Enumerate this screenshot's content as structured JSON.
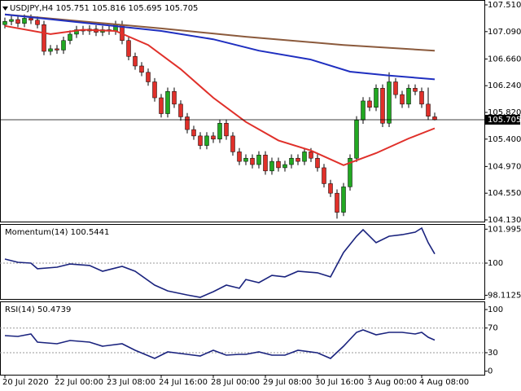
{
  "chart_data": [
    {
      "type": "candlestick",
      "title": "USDJPY,H4  105.751 105.816 105.695 105.705",
      "xlim": [
        -0.75,
        73.625
      ],
      "xticks": [
        {
          "value": 0,
          "label": "20 Jul 2020"
        },
        {
          "value": 8,
          "label": "22 Jul 00:00"
        },
        {
          "value": 16,
          "label": "23 Jul 08:00"
        },
        {
          "value": 24,
          "label": "24 Jul 16:00"
        },
        {
          "value": 32,
          "label": "28 Jul 00:00"
        },
        {
          "value": 40,
          "label": "29 Jul 08:00"
        },
        {
          "value": 48,
          "label": "30 Jul 16:00"
        },
        {
          "value": 56,
          "label": "3 Aug 00:00"
        },
        {
          "value": 64,
          "label": "4 Aug 08:00"
        }
      ],
      "ylim": [
        104.104,
        107.587
      ],
      "yticks": [
        {
          "value": 107.51,
          "label": "107.510"
        },
        {
          "value": 107.09,
          "label": "107.090"
        },
        {
          "value": 106.66,
          "label": "106.660"
        },
        {
          "value": 106.24,
          "label": "106.240"
        },
        {
          "value": 105.82,
          "label": "105.820"
        },
        {
          "value": 105.4,
          "label": "105.400"
        },
        {
          "value": 104.97,
          "label": "104.970"
        },
        {
          "value": 104.55,
          "label": "104.550"
        },
        {
          "value": 104.13,
          "label": "104.130"
        }
      ],
      "price_line": 105.705,
      "up_color": "#22a822",
      "down_color": "#e0302a",
      "open": [
        107.2,
        107.25,
        107.28,
        107.22,
        107.3,
        107.27,
        107.2,
        106.78,
        106.82,
        106.8,
        106.95,
        107.05,
        107.12,
        107.1,
        107.13,
        107.08,
        107.12,
        107.1,
        107.2,
        106.95,
        106.7,
        106.55,
        106.45,
        106.3,
        106.05,
        105.8,
        106.15,
        105.95,
        105.75,
        105.55,
        105.45,
        105.3,
        105.45,
        105.4,
        105.65,
        105.45,
        105.2,
        105.05,
        105.1,
        105.0,
        105.15,
        104.9,
        105.05,
        104.95,
        105.0,
        105.1,
        105.05,
        105.2,
        105.1,
        104.95,
        104.7,
        104.55,
        104.25,
        104.65,
        105.1,
        105.7,
        106.0,
        105.9,
        106.2,
        105.65,
        106.3,
        106.1,
        105.95,
        106.2,
        106.15,
        105.95,
        105.751
      ],
      "high": [
        107.31,
        107.34,
        107.34,
        107.36,
        107.36,
        107.33,
        107.26,
        106.88,
        106.88,
        107.01,
        107.11,
        107.18,
        107.18,
        107.19,
        107.19,
        107.18,
        107.18,
        107.26,
        107.26,
        107.01,
        106.76,
        106.61,
        106.51,
        106.36,
        106.11,
        106.21,
        106.21,
        106.01,
        105.81,
        105.61,
        105.51,
        105.51,
        105.51,
        105.71,
        105.71,
        105.51,
        105.26,
        105.16,
        105.16,
        105.21,
        105.21,
        105.11,
        105.11,
        105.06,
        105.16,
        105.16,
        105.26,
        105.26,
        105.16,
        105.01,
        104.76,
        104.61,
        104.71,
        105.16,
        105.76,
        106.06,
        106.06,
        106.26,
        106.26,
        106.45,
        106.36,
        106.16,
        106.26,
        106.26,
        106.21,
        106.21,
        105.816
      ],
      "low": [
        107.14,
        107.19,
        107.16,
        107.16,
        107.21,
        107.14,
        106.72,
        106.72,
        106.74,
        106.74,
        106.89,
        106.99,
        107.04,
        107.04,
        107.02,
        107.02,
        107.04,
        107.04,
        106.89,
        106.64,
        106.49,
        106.39,
        106.24,
        105.99,
        105.74,
        105.74,
        105.89,
        105.69,
        105.49,
        105.39,
        105.24,
        105.24,
        105.34,
        105.34,
        105.39,
        105.14,
        104.99,
        104.99,
        104.94,
        104.94,
        104.84,
        104.84,
        104.89,
        104.89,
        104.94,
        104.99,
        104.99,
        105.04,
        104.89,
        104.64,
        104.49,
        104.15,
        104.19,
        104.59,
        105.04,
        105.64,
        105.84,
        105.84,
        105.59,
        105.59,
        106.04,
        105.89,
        105.89,
        106.09,
        105.89,
        105.7,
        105.695
      ],
      "close": [
        107.25,
        107.28,
        107.22,
        107.3,
        107.27,
        107.2,
        106.78,
        106.82,
        106.8,
        106.95,
        107.05,
        107.12,
        107.1,
        107.13,
        107.08,
        107.12,
        107.1,
        107.2,
        106.95,
        106.7,
        106.55,
        106.45,
        106.3,
        106.05,
        105.8,
        106.15,
        105.95,
        105.75,
        105.55,
        105.45,
        105.3,
        105.45,
        105.4,
        105.65,
        105.45,
        105.2,
        105.05,
        105.1,
        105.0,
        105.15,
        104.9,
        105.05,
        104.95,
        105.0,
        105.1,
        105.05,
        105.2,
        105.1,
        104.95,
        104.7,
        104.55,
        104.25,
        104.65,
        105.1,
        105.7,
        106.0,
        105.9,
        106.2,
        105.65,
        106.3,
        106.1,
        105.95,
        106.2,
        106.15,
        105.95,
        105.76,
        105.705
      ],
      "lines": [
        {
          "color": "#8b5a3c",
          "x": [
            0,
            24,
            37,
            52,
            66
          ],
          "values": [
            107.36,
            107.14,
            107.01,
            106.88,
            106.79
          ]
        },
        {
          "color": "#1f2fc0",
          "x": [
            0,
            12,
            24,
            32,
            39,
            47,
            53,
            59,
            66
          ],
          "values": [
            107.36,
            107.23,
            107.1,
            106.97,
            106.79,
            106.65,
            106.46,
            106.4,
            106.34
          ]
        },
        {
          "color": "#e0302a",
          "x": [
            0,
            7,
            12,
            17,
            22,
            27,
            32,
            37,
            42,
            47,
            52,
            57,
            62,
            66
          ],
          "values": [
            107.18,
            107.05,
            107.12,
            107.1,
            106.88,
            106.5,
            106.05,
            105.67,
            105.38,
            105.22,
            104.99,
            105.18,
            105.41,
            105.57
          ]
        }
      ]
    },
    {
      "type": "line",
      "title": "Momentum(14) 100.5441",
      "color": "#1a237e",
      "ylim": [
        97.895,
        102.297
      ],
      "yticks": [
        101.995,
        100,
        98.1125
      ],
      "levels": [
        100
      ],
      "x": [
        0,
        2,
        4,
        5,
        8,
        10,
        13,
        15,
        18,
        20,
        23,
        25,
        28,
        30,
        32,
        34,
        36,
        37,
        39,
        41,
        43,
        45,
        48,
        50,
        52,
        54,
        55,
        57,
        59,
        61,
        63,
        64,
        65,
        66
      ],
      "values": [
        100.24,
        100.05,
        100.0,
        99.67,
        99.76,
        99.95,
        99.86,
        99.52,
        99.81,
        99.52,
        98.71,
        98.37,
        98.13,
        97.99,
        98.32,
        98.71,
        98.52,
        99.04,
        98.85,
        99.28,
        99.19,
        99.52,
        99.43,
        99.19,
        100.62,
        101.58,
        101.96,
        101.2,
        101.58,
        101.67,
        101.82,
        102.06,
        101.2,
        100.54
      ]
    },
    {
      "type": "line",
      "title": "RSI(14) 50.4739",
      "color": "#1a237e",
      "ylim": [
        -5.7,
        113.2
      ],
      "yticks": [
        100,
        70,
        30,
        0
      ],
      "levels": [
        70,
        30
      ],
      "x": [
        0,
        2,
        4,
        5,
        8,
        10,
        13,
        15,
        18,
        20,
        23,
        25,
        28,
        30,
        32,
        34,
        36,
        37,
        39,
        41,
        43,
        45,
        48,
        50,
        52,
        54,
        55,
        57,
        59,
        61,
        63,
        64,
        65,
        66
      ],
      "values": [
        57.7,
        56.4,
        60.4,
        47.2,
        44.5,
        49.8,
        47.2,
        40.5,
        44.5,
        33.9,
        20.7,
        31.3,
        27.3,
        24.7,
        33.9,
        26.0,
        27.3,
        27.3,
        31.3,
        26.0,
        26.0,
        33.9,
        29.9,
        20.7,
        40.5,
        63.0,
        66.9,
        59.0,
        63.0,
        63.0,
        60.4,
        63.0,
        55.1,
        50.47
      ]
    }
  ]
}
